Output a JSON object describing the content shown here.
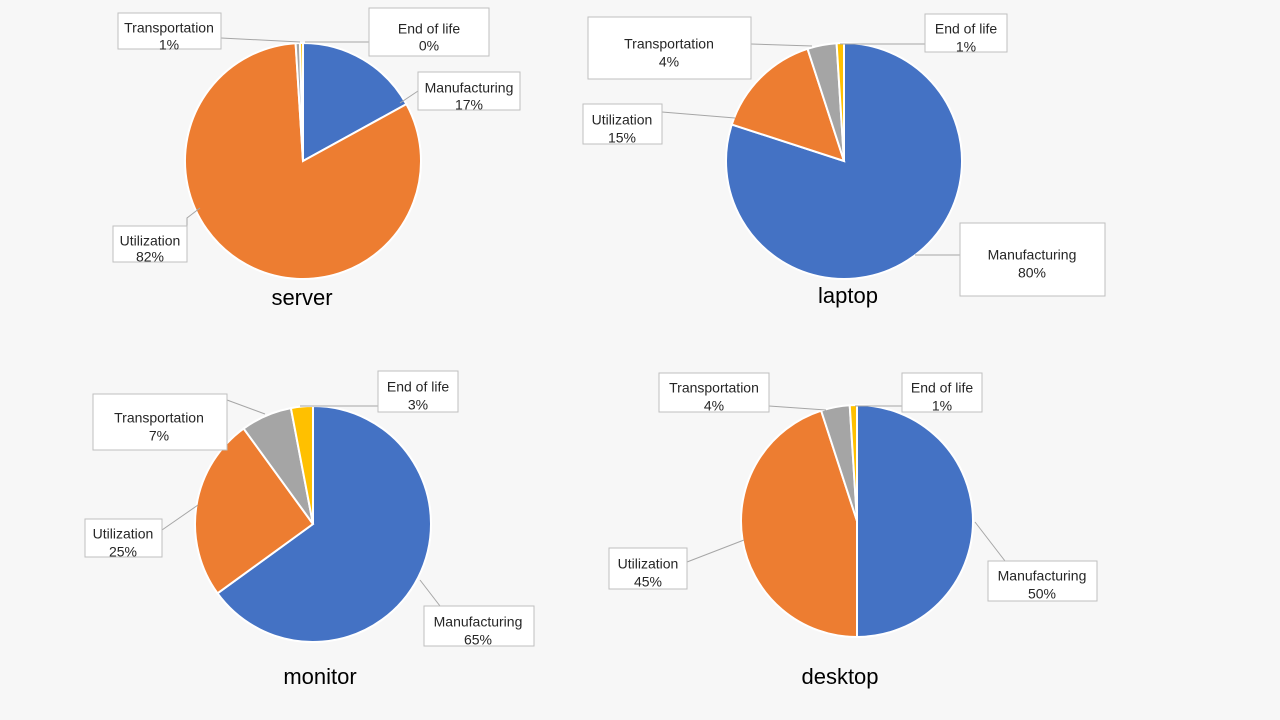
{
  "colors": {
    "Manufacturing": "#4472c4",
    "Utilization": "#ed7d31",
    "Transportation": "#a5a5a5",
    "End of life": "#ffc000"
  },
  "chart_data": [
    {
      "type": "pie",
      "title": "server",
      "slices": [
        {
          "label": "Manufacturing",
          "value": 17,
          "display": "17%"
        },
        {
          "label": "Utilization",
          "value": 82,
          "display": "82%"
        },
        {
          "label": "Transportation",
          "value": 0.6,
          "display": "1%"
        },
        {
          "label": "End of life",
          "value": 0.4,
          "display": "0%"
        }
      ]
    },
    {
      "type": "pie",
      "title": "laptop",
      "slices": [
        {
          "label": "Manufacturing",
          "value": 80,
          "display": "80%"
        },
        {
          "label": "Utilization",
          "value": 15,
          "display": "15%"
        },
        {
          "label": "Transportation",
          "value": 4,
          "display": "4%"
        },
        {
          "label": "End of life",
          "value": 1,
          "display": "1%"
        }
      ]
    },
    {
      "type": "pie",
      "title": "monitor",
      "slices": [
        {
          "label": "Manufacturing",
          "value": 65,
          "display": "65%"
        },
        {
          "label": "Utilization",
          "value": 25,
          "display": "25%"
        },
        {
          "label": "Transportation",
          "value": 7,
          "display": "7%"
        },
        {
          "label": "End of life",
          "value": 3,
          "display": "3%"
        }
      ]
    },
    {
      "type": "pie",
      "title": "desktop",
      "slices": [
        {
          "label": "Manufacturing",
          "value": 50,
          "display": "50%"
        },
        {
          "label": "Utilization",
          "value": 45,
          "display": "45%"
        },
        {
          "label": "Transportation",
          "value": 4,
          "display": "4%"
        },
        {
          "label": "End of life",
          "value": 1,
          "display": "1%"
        }
      ]
    }
  ]
}
